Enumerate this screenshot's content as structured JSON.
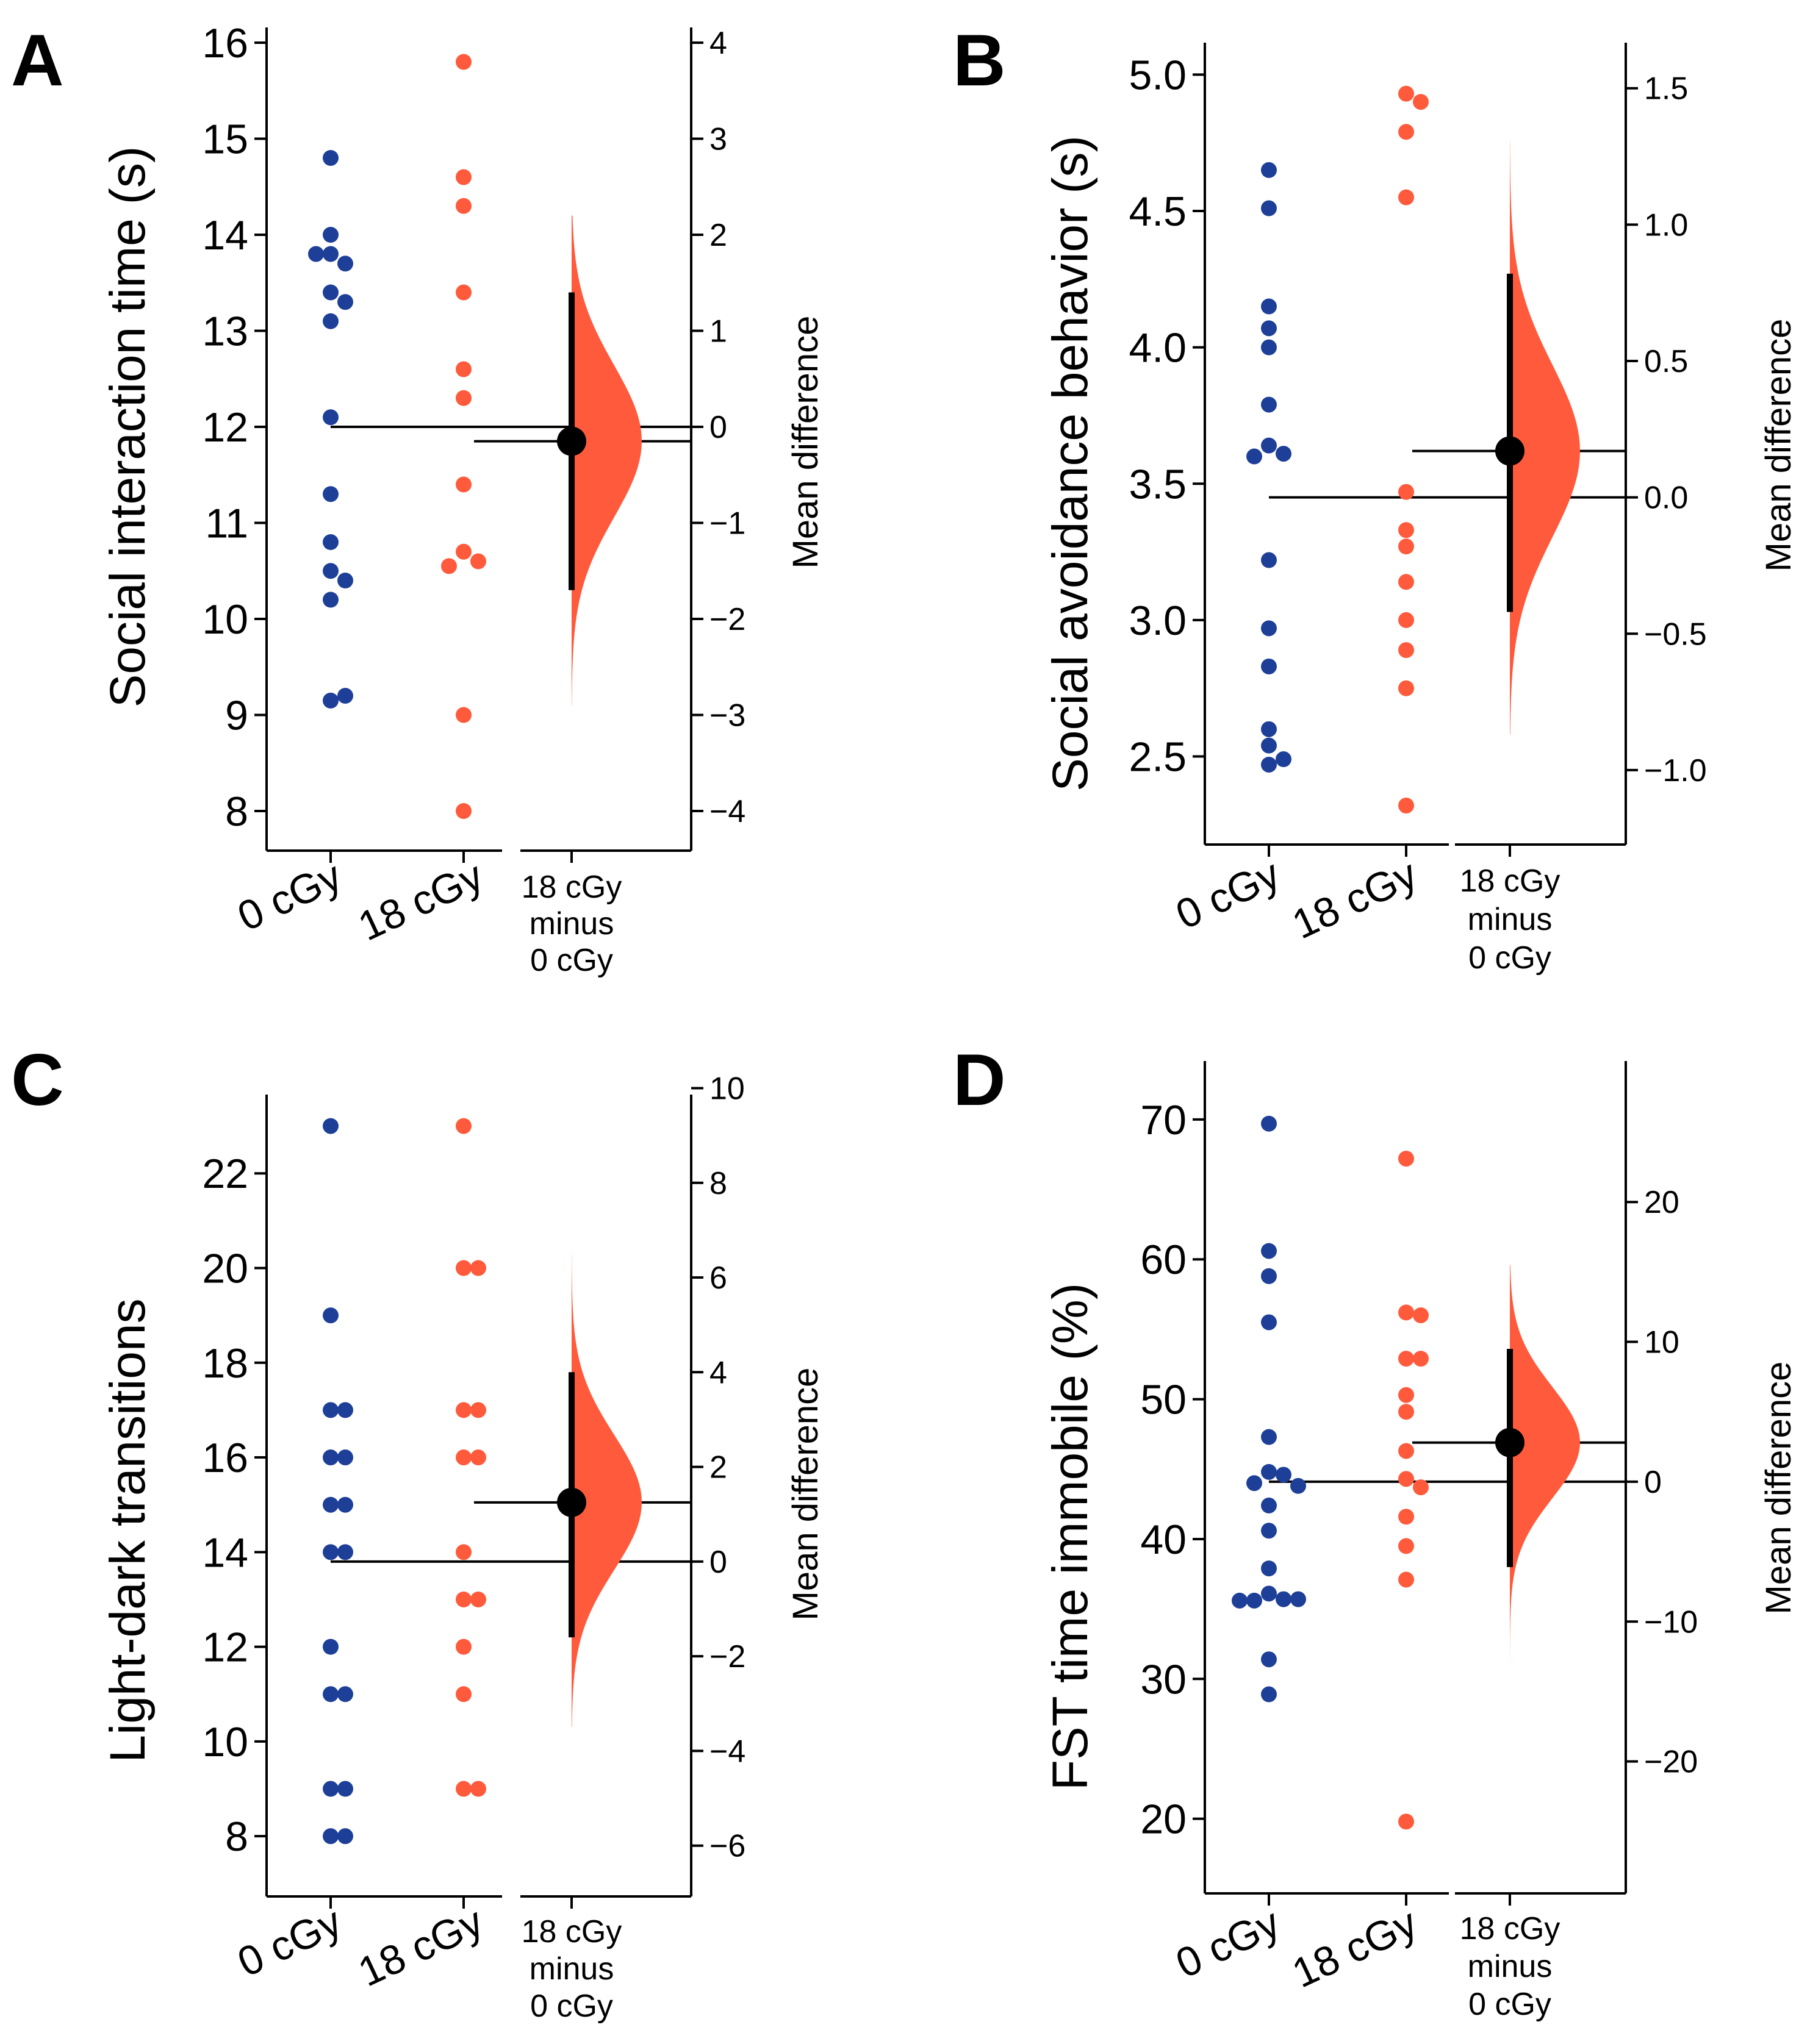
{
  "colors": {
    "control": "#1e3f97",
    "treated": "#ff5a3c",
    "effect": "#000000"
  },
  "chart_data": [
    {
      "panel": "A",
      "type": "scatter",
      "ylabel": "Social interaction time (s)",
      "right_label": "Mean difference",
      "ylim": [
        8,
        16
      ],
      "yticks": [
        8,
        9,
        10,
        11,
        12,
        13,
        14,
        15,
        16
      ],
      "categories": [
        "0 cGy",
        "18 cGy"
      ],
      "diff_label": [
        "18 cGy",
        "minus",
        "0 cGy"
      ],
      "series": [
        {
          "name": "0 cGy",
          "values": [
            14.8,
            14.0,
            13.8,
            13.7,
            13.8,
            13.4,
            13.3,
            13.1,
            12.1,
            11.3,
            10.8,
            10.5,
            10.4,
            10.2,
            9.15,
            9.2
          ]
        },
        {
          "name": "18 cGy",
          "values": [
            15.8,
            14.6,
            14.3,
            13.4,
            12.6,
            12.3,
            11.4,
            10.7,
            10.6,
            10.55,
            9.0,
            8.0
          ]
        }
      ],
      "control_mean": 12.0,
      "mean_difference": -0.15,
      "ci": [
        -1.7,
        1.4
      ],
      "dist_range": [
        -2.9,
        2.2
      ],
      "rticks": [
        -4,
        -3,
        -2,
        -1,
        0,
        1,
        2,
        3,
        4
      ],
      "rtick_labels": [
        "−4",
        "−3",
        "−2",
        "−1",
        "0",
        "1",
        "2",
        "3",
        "4"
      ]
    },
    {
      "panel": "B",
      "type": "scatter",
      "ylabel": "Social avoidance behavior (s)",
      "right_label": "Mean difference",
      "ylim": [
        2.3,
        5.05
      ],
      "yticks": [
        2.5,
        3.0,
        3.5,
        4.0,
        4.5,
        5.0
      ],
      "ytick_labels": [
        "2.5",
        "3.0",
        "3.5",
        "4.0",
        "4.5",
        "5.0"
      ],
      "categories": [
        "0 cGy",
        "18 cGy"
      ],
      "diff_label": [
        "18 cGy",
        "minus",
        "0 cGy"
      ],
      "series": [
        {
          "name": "0 cGy",
          "values": [
            4.65,
            4.51,
            4.15,
            4.07,
            4.0,
            3.79,
            3.64,
            3.61,
            3.6,
            3.22,
            2.97,
            2.83,
            2.6,
            2.54,
            2.49,
            2.47
          ]
        },
        {
          "name": "18 cGy",
          "values": [
            4.93,
            4.9,
            4.79,
            4.55,
            3.47,
            3.33,
            3.27,
            3.14,
            3.0,
            2.89,
            2.75,
            2.32
          ]
        }
      ],
      "control_mean": 3.45,
      "mean_difference": 0.17,
      "ci": [
        -0.42,
        0.82
      ],
      "dist_range": [
        -0.87,
        1.31
      ],
      "rticks": [
        -1.0,
        -0.5,
        0.0,
        0.5,
        1.0,
        1.5
      ],
      "rtick_labels": [
        "−1.0",
        "−0.5",
        "0.0",
        "0.5",
        "1.0",
        "1.5"
      ]
    },
    {
      "panel": "C",
      "type": "scatter",
      "ylabel": "Light-dark transitions",
      "right_label": "Mean difference",
      "ylim": [
        7.5,
        23.6
      ],
      "yticks": [
        8,
        10,
        12,
        14,
        16,
        18,
        20,
        22
      ],
      "categories": [
        "0 cGy",
        "18 cGy"
      ],
      "diff_label": [
        "18 cGy",
        "minus",
        "0 cGy"
      ],
      "series": [
        {
          "name": "0 cGy",
          "values": [
            23,
            19,
            17,
            17,
            16,
            16,
            15,
            15,
            14,
            14,
            12,
            11,
            11,
            9,
            9,
            8,
            8
          ]
        },
        {
          "name": "18 cGy",
          "values": [
            23,
            20,
            20,
            17,
            17,
            16,
            16,
            14,
            13,
            13,
            12,
            11,
            9,
            9
          ]
        }
      ],
      "control_mean": 13.8,
      "mean_difference": 1.25,
      "ci": [
        -1.6,
        4.0
      ],
      "dist_range": [
        -3.5,
        6.5
      ],
      "rticks": [
        -6,
        -4,
        -2,
        0,
        2,
        4,
        6,
        8,
        10
      ],
      "rtick_labels": [
        "−6",
        "−4",
        "−2",
        "0",
        "2",
        "4",
        "6",
        "8",
        "10"
      ]
    },
    {
      "panel": "D",
      "type": "scatter",
      "ylabel": "FST time immobile (%)",
      "right_label": "Mean difference",
      "ylim": [
        17.5,
        72
      ],
      "yticks": [
        20,
        30,
        40,
        50,
        60,
        70
      ],
      "categories": [
        "0 cGy",
        "18 cGy"
      ],
      "diff_label": [
        "18 cGy",
        "minus",
        "0 cGy"
      ],
      "series": [
        {
          "name": "0 cGy",
          "values": [
            69.7,
            60.6,
            58.8,
            55.5,
            47.3,
            44.8,
            44.6,
            44.0,
            43.8,
            42.4,
            40.6,
            37.9,
            36.1,
            35.7,
            35.6,
            35.7,
            35.6,
            31.4,
            28.9
          ]
        },
        {
          "name": "18 cGy",
          "values": [
            67.2,
            56.2,
            56.0,
            52.9,
            52.9,
            50.3,
            49.1,
            46.3,
            44.3,
            43.7,
            41.6,
            39.5,
            37.1,
            19.8
          ]
        }
      ],
      "control_mean": 44.1,
      "mean_difference": 2.8,
      "ci": [
        -6.1,
        9.5
      ],
      "dist_range": [
        -13.0,
        15.5
      ],
      "rticks": [
        -20,
        -10,
        0,
        10,
        20
      ],
      "rtick_labels": [
        "−20",
        "−10",
        "0",
        "10",
        "20"
      ]
    }
  ]
}
